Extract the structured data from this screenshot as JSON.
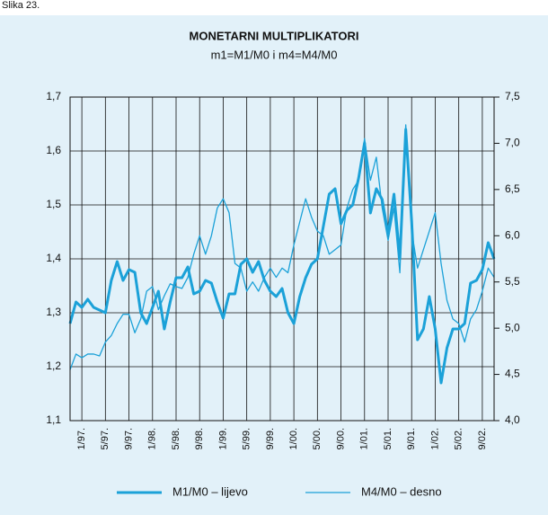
{
  "figure_label": "Slika 23.",
  "chart_data": {
    "type": "line",
    "title": "MONETARNI MULTIPLIKATORI",
    "subtitle": "m1=M1/M0 i m4=M4/M0",
    "x": [
      -2,
      -1,
      0,
      1,
      2,
      3,
      4,
      5,
      6,
      7,
      8,
      9,
      10,
      11,
      12,
      13,
      14,
      15,
      16,
      17,
      18,
      19,
      20,
      21,
      22,
      23,
      24,
      25,
      26,
      27,
      28,
      29,
      30,
      31,
      32,
      33,
      34,
      35,
      36,
      37,
      38,
      39,
      40,
      41,
      42,
      43,
      44,
      45,
      46,
      47,
      48,
      49,
      50,
      51,
      52,
      53,
      54,
      55,
      56,
      57,
      58,
      59,
      60,
      61,
      62,
      63,
      64,
      65,
      66,
      67,
      68,
      69,
      70
    ],
    "xlim": [
      -2,
      70
    ],
    "xticks": [
      {
        "value": 0,
        "label": "1/97."
      },
      {
        "value": 4,
        "label": "5/97."
      },
      {
        "value": 8,
        "label": "9/97."
      },
      {
        "value": 12,
        "label": "1/98."
      },
      {
        "value": 16,
        "label": "5/98."
      },
      {
        "value": 20,
        "label": "9/98."
      },
      {
        "value": 24,
        "label": "1/99."
      },
      {
        "value": 28,
        "label": "5/99."
      },
      {
        "value": 32,
        "label": "9/99."
      },
      {
        "value": 36,
        "label": "1/00."
      },
      {
        "value": 40,
        "label": "5/00."
      },
      {
        "value": 44,
        "label": "9/00."
      },
      {
        "value": 48,
        "label": "1/01."
      },
      {
        "value": 52,
        "label": "5/01."
      },
      {
        "value": 56,
        "label": "9/01."
      },
      {
        "value": 60,
        "label": "1/02."
      },
      {
        "value": 64,
        "label": "5/02."
      },
      {
        "value": 68,
        "label": "9/02."
      }
    ],
    "ylim": [
      1.1,
      1.7
    ],
    "yticks": [
      {
        "value": 1.1,
        "label": "1,1"
      },
      {
        "value": 1.2,
        "label": "1,2"
      },
      {
        "value": 1.3,
        "label": "1,3"
      },
      {
        "value": 1.4,
        "label": "1,4"
      },
      {
        "value": 1.5,
        "label": "1,5"
      },
      {
        "value": 1.6,
        "label": "1,6"
      },
      {
        "value": 1.7,
        "label": "1,7"
      }
    ],
    "y2lim": [
      4.0,
      7.5
    ],
    "y2ticks": [
      {
        "value": 4.0,
        "label": "4,0"
      },
      {
        "value": 4.5,
        "label": "4,5"
      },
      {
        "value": 5.0,
        "label": "5,0"
      },
      {
        "value": 5.5,
        "label": "5,5"
      },
      {
        "value": 6.0,
        "label": "6,0"
      },
      {
        "value": 6.5,
        "label": "6,5"
      },
      {
        "value": 7.0,
        "label": "7,0"
      },
      {
        "value": 7.5,
        "label": "7,5"
      }
    ],
    "grid": true,
    "series": [
      {
        "name": "M1/M0 – lijevo",
        "color": "#1ba1d8",
        "width": 3,
        "axis": "y",
        "values": [
          1.28,
          1.32,
          1.31,
          1.325,
          1.31,
          1.305,
          1.3,
          1.36,
          1.395,
          1.36,
          1.38,
          1.375,
          1.3,
          1.28,
          1.31,
          1.34,
          1.27,
          1.32,
          1.365,
          1.365,
          1.385,
          1.335,
          1.34,
          1.36,
          1.355,
          1.32,
          1.29,
          1.335,
          1.335,
          1.39,
          1.4,
          1.375,
          1.395,
          1.36,
          1.34,
          1.33,
          1.345,
          1.3,
          1.28,
          1.33,
          1.365,
          1.39,
          1.4,
          1.46,
          1.52,
          1.53,
          1.465,
          1.49,
          1.5,
          1.55,
          1.615,
          1.485,
          1.53,
          1.51,
          1.445,
          1.52,
          1.4,
          1.64,
          1.47,
          1.25,
          1.27,
          1.33,
          1.27,
          1.17,
          1.235,
          1.27,
          1.27,
          1.28,
          1.355,
          1.36,
          1.38,
          1.43,
          1.4
        ]
      },
      {
        "name": "M4/M0 – desno",
        "color": "#1ba1d8",
        "width": 1.3,
        "axis": "y2",
        "values": [
          4.55,
          4.72,
          4.68,
          4.72,
          4.72,
          4.7,
          4.85,
          4.92,
          5.05,
          5.15,
          5.15,
          4.95,
          5.1,
          5.4,
          5.45,
          5.2,
          5.35,
          5.48,
          5.45,
          5.43,
          5.55,
          5.8,
          6.0,
          5.8,
          6.0,
          6.3,
          6.4,
          6.25,
          5.7,
          5.65,
          5.4,
          5.5,
          5.4,
          5.55,
          5.65,
          5.55,
          5.65,
          5.6,
          5.9,
          6.15,
          6.4,
          6.2,
          6.05,
          6.0,
          5.8,
          5.85,
          5.9,
          6.3,
          6.5,
          6.6,
          7.05,
          6.6,
          6.85,
          6.3,
          5.95,
          6.3,
          5.6,
          7.2,
          6.05,
          5.65,
          5.85,
          6.05,
          6.25,
          5.7,
          5.3,
          5.1,
          5.05,
          4.85,
          5.1,
          5.2,
          5.4,
          5.65,
          5.55
        ]
      }
    ],
    "legend": "bottom"
  }
}
